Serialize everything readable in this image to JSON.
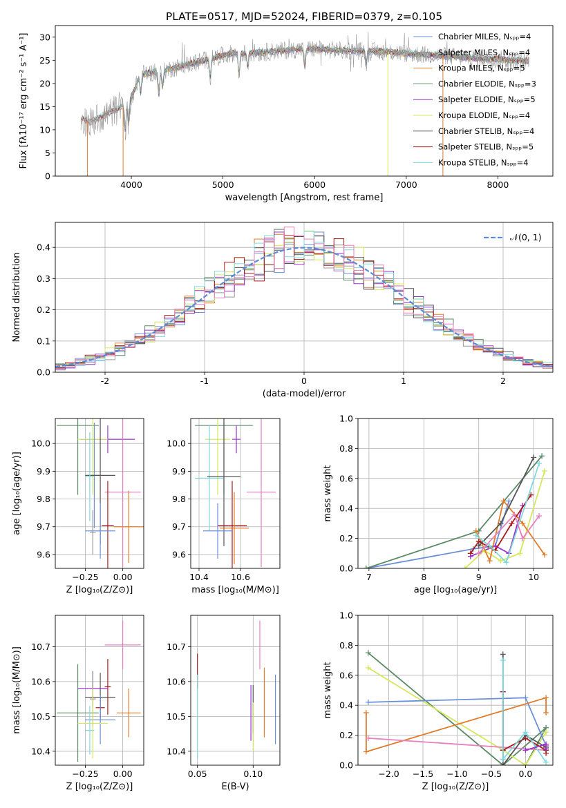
{
  "figure": {
    "title": "PLATE=0517, MJD=52024, FIBERID=0379, z=0.105"
  },
  "colors": {
    "chabrier_miles": "#6a8fd8",
    "salpeter_miles": "#9a9a9a",
    "kroupa_miles": "#e07b2a",
    "chabrier_elodie": "#5a8a66",
    "salpeter_elodie": "#9933cc",
    "kroupa_elodie": "#d4e85a",
    "chabrier_stelib": "#555555",
    "salpeter_stelib": "#aa1a1a",
    "kroupa_stelib": "#7fd9dd",
    "pink": "#e87fbf",
    "grid": "#b0b0b0",
    "gaussian": "#5b8bd8"
  },
  "chart_data": [
    {
      "id": "spectrum",
      "type": "line",
      "xlabel": "wavelength [Angstrom, rest frame]",
      "ylabel": "Flux [fλ10⁻¹⁷ erg cm⁻² s⁻¹ A⁻¹]",
      "xlim": [
        3170,
        8600
      ],
      "ylim": [
        0,
        32.5
      ],
      "xticks": [
        4000,
        5000,
        6000,
        7000,
        8000
      ],
      "yticks": [
        0,
        5,
        10,
        15,
        20,
        25,
        30
      ],
      "grid": false,
      "legend_position": "right",
      "legend": [
        "Chabrier MILES, Nₛₚₚ=4",
        "Salpeter MILES, Nₛₚₚ=4",
        "Kroupa MILES, Nₛₚₚ=5",
        "Chabrier ELODIE, Nₛₚₚ=3",
        "Salpeter ELODIE, Nₛₚₚ=5",
        "Kroupa ELODIE, Nₛₚₚ=4",
        "Chabrier STELIB, Nₛₚₚ=4",
        "Salpeter STELIB, Nₛₚₚ=5",
        "Kroupa STELIB, Nₛₚₚ=4"
      ],
      "continuum": {
        "x": [
          3450,
          3550,
          3700,
          3900,
          4000,
          4100,
          4300,
          4500,
          4700,
          4900,
          5100,
          5300,
          5600,
          5900,
          6200,
          6500,
          6800,
          7100,
          7400,
          7700,
          8000,
          8340
        ],
        "y": [
          12.5,
          11.5,
          13,
          15,
          17,
          22,
          22.5,
          23.5,
          24.5,
          25.5,
          26.5,
          26.5,
          27,
          27.5,
          27.2,
          27,
          26.8,
          26.3,
          26,
          25.5,
          25.2,
          24.8
        ]
      }
    },
    {
      "id": "residuals",
      "type": "histogram",
      "xlabel": "(data-model)/error",
      "ylabel": "Normed distribution",
      "xlim": [
        -2.5,
        2.5
      ],
      "ylim": [
        0,
        0.48
      ],
      "xticks": [
        -2,
        -1,
        0,
        1,
        2
      ],
      "yticks": [
        0.0,
        0.1,
        0.2,
        0.3,
        0.4
      ],
      "grid": true,
      "legend_position": "top-right",
      "legend": [
        "𝒩(0, 1)"
      ],
      "bin_width": 0.1
    },
    {
      "id": "age_vs_Z",
      "type": "errorbar",
      "xlabel": "Z [log₁₀(Z/Z⊙)]",
      "ylabel": "age  [log₁₀(age/yr)]",
      "xlim": [
        -0.45,
        0.14
      ],
      "ylim": [
        9.55,
        10.09
      ],
      "xticks": [
        -0.25,
        0.0
      ],
      "xticklabels": [
        "−0.25",
        "0.00"
      ],
      "yticks": [
        9.6,
        9.7,
        9.8,
        9.9,
        10.0
      ],
      "grid": true,
      "points": [
        {
          "x": -0.3,
          "y": 10.065,
          "xerr": 0.14,
          "yerr": 0.25,
          "c": "chabrier_elodie"
        },
        {
          "x": -0.1,
          "y": 10.015,
          "xerr": 0.18,
          "yerr": 0.05,
          "c": "salpeter_elodie"
        },
        {
          "x": -0.2,
          "y": 10.015,
          "xerr": 0.1,
          "yerr": 0.2,
          "c": "kroupa_elodie"
        },
        {
          "x": -0.19,
          "y": 9.885,
          "xerr": 0.05,
          "yerr": 0.19,
          "c": "chabrier_miles"
        },
        {
          "x": -0.15,
          "y": 9.885,
          "xerr": 0.1,
          "yerr": 0.25,
          "c": "chabrier_stelib"
        },
        {
          "x": -0.22,
          "y": 9.88,
          "xerr": 0.03,
          "yerr": 0.16,
          "c": "kroupa_stelib"
        },
        {
          "x": 0.0,
          "y": 9.825,
          "xerr": 0.12,
          "yerr": 0.27,
          "c": "pink"
        },
        {
          "x": -0.1,
          "y": 9.705,
          "xerr": 0.04,
          "yerr": 0.16,
          "c": "salpeter_stelib"
        },
        {
          "x": 0.04,
          "y": 9.7,
          "xerr": 0.1,
          "yerr": 0.13,
          "c": "kroupa_miles"
        },
        {
          "x": -0.15,
          "y": 9.685,
          "xerr": 0.1,
          "yerr": 0.1,
          "c": "chabrier_miles"
        },
        {
          "x": -0.2,
          "y": 9.68,
          "xerr": 0.02,
          "yerr": 0.08,
          "c": "salpeter_miles"
        }
      ]
    },
    {
      "id": "age_vs_mass",
      "type": "errorbar",
      "xlabel": "mass [log₁₀(M/M⊙)]",
      "xlim": [
        10.36,
        10.79
      ],
      "ylim": [
        9.55,
        10.09
      ],
      "xticks": [
        10.4,
        10.6
      ],
      "yticks": [
        9.6,
        9.7,
        9.8,
        9.9,
        10.0
      ],
      "grid": true,
      "points": [
        {
          "x": 10.52,
          "y": 10.065,
          "xerr": 0.14,
          "yerr": 0.25,
          "c": "chabrier_elodie"
        },
        {
          "x": 10.58,
          "y": 10.015,
          "xerr": 0.02,
          "yerr": 0.05,
          "c": "salpeter_elodie"
        },
        {
          "x": 10.49,
          "y": 10.015,
          "xerr": 0.06,
          "yerr": 0.2,
          "c": "kroupa_elodie"
        },
        {
          "x": 10.45,
          "y": 9.875,
          "xerr": 0.07,
          "yerr": 0.19,
          "c": "kroupa_stelib"
        },
        {
          "x": 10.52,
          "y": 9.88,
          "xerr": 0.08,
          "yerr": 0.25,
          "c": "chabrier_stelib"
        },
        {
          "x": 10.7,
          "y": 9.825,
          "xerr": 0.07,
          "yerr": 0.27,
          "c": "pink"
        },
        {
          "x": 10.56,
          "y": 9.705,
          "xerr": 0.07,
          "yerr": 0.16,
          "c": "salpeter_stelib"
        },
        {
          "x": 10.57,
          "y": 9.695,
          "xerr": 0.07,
          "yerr": 0.13,
          "c": "kroupa_miles"
        },
        {
          "x": 10.49,
          "y": 9.685,
          "xerr": 0.07,
          "yerr": 0.1,
          "c": "chabrier_miles"
        }
      ]
    },
    {
      "id": "weight_vs_age",
      "type": "line",
      "xlabel": "age  [log₁₀(age/yr)]",
      "ylabel": "mass weight",
      "xlim": [
        6.8,
        10.35
      ],
      "ylim": [
        0,
        1.0
      ],
      "xticks": [
        7,
        8,
        9,
        10
      ],
      "yticks": [
        0.0,
        0.2,
        0.4,
        0.6,
        0.8,
        1.0
      ],
      "grid": true,
      "series": [
        {
          "c": "chabrier_miles",
          "x": [
            6.95,
            8.9,
            9.3,
            9.55
          ],
          "y": [
            0.0,
            0.13,
            0.15,
            0.45
          ]
        },
        {
          "c": "chabrier_elodie",
          "x": [
            6.95,
            9.0,
            10.15
          ],
          "y": [
            0.0,
            0.25,
            0.75
          ]
        },
        {
          "c": "salpeter_elodie",
          "x": [
            8.85,
            9.3,
            9.55,
            9.8
          ],
          "y": [
            0.08,
            0.15,
            0.1,
            0.42
          ]
        },
        {
          "c": "kroupa_elodie",
          "x": [
            8.75,
            9.1,
            9.4,
            9.75,
            10.2
          ],
          "y": [
            0.0,
            0.12,
            0.05,
            0.1,
            0.65
          ]
        },
        {
          "c": "kroupa_miles",
          "x": [
            8.95,
            9.2,
            9.45,
            9.8,
            10.2
          ],
          "y": [
            0.25,
            0.05,
            0.45,
            0.3,
            0.09
          ]
        },
        {
          "c": "salpeter_stelib",
          "x": [
            8.85,
            9.0,
            9.3,
            9.6,
            9.95
          ],
          "y": [
            0.1,
            0.18,
            0.12,
            0.3,
            0.49
          ]
        },
        {
          "c": "chabrier_stelib",
          "x": [
            9.0,
            9.4,
            10.0
          ],
          "y": [
            0.15,
            0.3,
            0.74
          ]
        },
        {
          "c": "kroupa_stelib",
          "x": [
            8.95,
            9.2,
            9.5,
            10.1
          ],
          "y": [
            0.22,
            0.15,
            0.04,
            0.7
          ]
        },
        {
          "c": "pink",
          "x": [
            9.0,
            9.65,
            9.8,
            10.1
          ],
          "y": [
            0.1,
            0.36,
            0.2,
            0.35
          ]
        }
      ]
    },
    {
      "id": "mass_vs_Z",
      "type": "errorbar",
      "xlabel": "Z [log₁₀(Z/Z⊙)]",
      "ylabel": "mass [log₁₀(M/M⊙)]",
      "xlim": [
        -0.45,
        0.14
      ],
      "ylim": [
        10.36,
        10.79
      ],
      "xticks": [
        -0.25,
        0.0
      ],
      "xticklabels": [
        "−0.25",
        "0.00"
      ],
      "yticks": [
        10.4,
        10.5,
        10.6,
        10.7
      ],
      "grid": true,
      "points": [
        {
          "x": 0.0,
          "y": 10.705,
          "xerr": 0.12,
          "yerr": 0.07,
          "c": "pink"
        },
        {
          "x": -0.1,
          "y": 10.585,
          "xerr": 0.02,
          "yerr": 0.08,
          "c": "salpeter_stelib"
        },
        {
          "x": -0.2,
          "y": 10.58,
          "xerr": 0.1,
          "yerr": 0.05,
          "c": "salpeter_elodie"
        },
        {
          "x": -0.15,
          "y": 10.555,
          "xerr": 0.1,
          "yerr": 0.07,
          "c": "chabrier_stelib"
        },
        {
          "x": -0.2,
          "y": 10.55,
          "xerr": 0.02,
          "yerr": 0.08,
          "c": "salpeter_miles"
        },
        {
          "x": -0.15,
          "y": 10.525,
          "xerr": 0.03,
          "yerr": 0.03,
          "c": "salpeter_stelib"
        },
        {
          "x": -0.3,
          "y": 10.51,
          "xerr": 0.14,
          "yerr": 0.14,
          "c": "chabrier_elodie"
        },
        {
          "x": 0.04,
          "y": 10.51,
          "xerr": 0.08,
          "yerr": 0.07,
          "c": "kroupa_miles"
        },
        {
          "x": -0.15,
          "y": 10.49,
          "xerr": 0.1,
          "yerr": 0.07,
          "c": "chabrier_miles"
        },
        {
          "x": -0.2,
          "y": 10.48,
          "xerr": 0.1,
          "yerr": 0.1,
          "c": "kroupa_elodie"
        },
        {
          "x": -0.22,
          "y": 10.46,
          "xerr": 0.03,
          "yerr": 0.07,
          "c": "kroupa_stelib"
        }
      ]
    },
    {
      "id": "mass_vs_EBV",
      "type": "errorbar",
      "xlabel": "E(B-V)",
      "xlim": [
        0.044,
        0.124
      ],
      "ylim": [
        10.36,
        10.79
      ],
      "xticks": [
        0.05,
        0.1
      ],
      "xticklabels": [
        "0.05",
        "0.10"
      ],
      "yticks": [
        10.4,
        10.5,
        10.6,
        10.7
      ],
      "grid": true,
      "points": [
        {
          "x": 0.05,
          "y": 10.63,
          "xerr": 0,
          "yerr": 0.05,
          "c": "salpeter_stelib"
        },
        {
          "x": 0.05,
          "y": 10.5,
          "xerr": 0,
          "yerr": 0.12,
          "c": "kroupa_stelib"
        },
        {
          "x": 0.098,
          "y": 10.51,
          "xerr": 0,
          "yerr": 0.08,
          "c": "salpeter_elodie"
        },
        {
          "x": 0.1,
          "y": 10.52,
          "xerr": 0,
          "yerr": 0.07,
          "c": "chabrier_stelib"
        },
        {
          "x": 0.1,
          "y": 10.47,
          "xerr": 0,
          "yerr": 0.07,
          "c": "kroupa_elodie"
        },
        {
          "x": 0.106,
          "y": 10.705,
          "xerr": 0,
          "yerr": 0.07,
          "c": "pink"
        },
        {
          "x": 0.11,
          "y": 10.54,
          "xerr": 0,
          "yerr": 0.1,
          "c": "kroupa_miles"
        },
        {
          "x": 0.12,
          "y": 10.52,
          "xerr": 0,
          "yerr": 0.1,
          "c": "chabrier_miles"
        }
      ]
    },
    {
      "id": "weight_vs_Z",
      "type": "line",
      "xlabel": "Z [log₁₀(Z/Z⊙)]",
      "ylabel": "mass weight",
      "xlim": [
        -2.45,
        0.4
      ],
      "ylim": [
        0,
        1.0
      ],
      "xticks": [
        -2.0,
        -1.5,
        -1.0,
        -0.5,
        0.0
      ],
      "xticklabels": [
        "−2.0",
        "−1.5",
        "−1.0",
        "−0.5",
        "0.0"
      ],
      "yticks": [
        0.0,
        0.2,
        0.4,
        0.6,
        0.8,
        1.0
      ],
      "grid": true,
      "series": [
        {
          "c": "chabrier_elodie",
          "x": [
            -2.3,
            -0.33,
            0.3,
            0.0
          ],
          "y": [
            0.75,
            0.0,
            0.25,
            0.0
          ]
        },
        {
          "c": "kroupa_elodie",
          "x": [
            -2.3,
            -0.33,
            0.0,
            0.3
          ],
          "y": [
            0.65,
            0.1,
            0.0,
            0.22
          ]
        },
        {
          "c": "chabrier_miles",
          "x": [
            -2.3,
            0.0,
            0.3,
            0.3
          ],
          "y": [
            0.42,
            0.45,
            0.13,
            0.12
          ]
        },
        {
          "c": "kroupa_miles",
          "x": [
            -2.33,
            -2.33,
            0.3,
            0.3
          ],
          "y": [
            0.35,
            0.09,
            0.45,
            0.35
          ]
        },
        {
          "c": "pink",
          "x": [
            -2.3,
            0.3,
            0.3
          ],
          "y": [
            0.18,
            0.1,
            0.13
          ]
        },
        {
          "c": "salpeter_stelib",
          "x": [
            -0.33,
            -0.33,
            0.0,
            0.3,
            0.3
          ],
          "y": [
            0.49,
            0.1,
            0.18,
            0.1,
            0.08
          ]
        },
        {
          "c": "chabrier_stelib",
          "x": [
            -0.33,
            -0.33,
            0.0,
            0.3
          ],
          "y": [
            0.74,
            0.0,
            0.2,
            0.12
          ]
        },
        {
          "c": "kroupa_stelib",
          "x": [
            -0.33,
            -0.33,
            0.0,
            0.3
          ],
          "y": [
            0.7,
            0.04,
            0.22,
            0.02
          ]
        },
        {
          "c": "salpeter_elodie",
          "x": [
            0.0,
            0.3,
            0.3
          ],
          "y": [
            0.1,
            0.14,
            0.11
          ]
        }
      ]
    }
  ]
}
